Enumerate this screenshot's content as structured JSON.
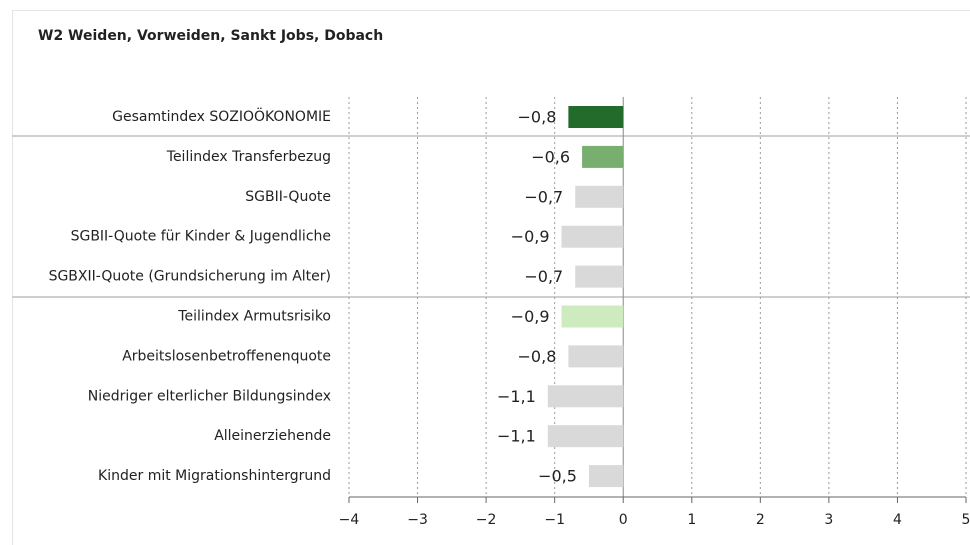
{
  "chart_data": {
    "type": "bar",
    "orientation": "horizontal",
    "title": "W2 Weiden, Vorweiden, Sankt Jobs, Dobach",
    "categories": [
      "Gesamtindex SOZIOÖKONOMIE",
      "Teilindex Transferbezug",
      "SGBII-Quote",
      "SGBII-Quote für Kinder & Jugendliche",
      "SGBXII-Quote (Grundsicherung im Alter)",
      "Teilindex Armutsrisiko",
      "Arbeitslosenbetroffenenquote",
      "Niedriger elterlicher Bildungsindex",
      "Alleinerziehende",
      "Kinder mit Migrationshintergrund"
    ],
    "values": [
      -0.8,
      -0.6,
      -0.7,
      -0.9,
      -0.7,
      -0.9,
      -0.8,
      -1.1,
      -1.1,
      -0.5
    ],
    "value_labels": [
      "−0,8",
      "−0,6",
      "−0,7",
      "−0,9",
      "−0,7",
      "−0,9",
      "−0,8",
      "−1,1",
      "−1,1",
      "−0,5"
    ],
    "colors": [
      "#226b2a",
      "#78ae6e",
      "#d9d9d9",
      "#d9d9d9",
      "#d9d9d9",
      "#cdebbf",
      "#d9d9d9",
      "#d9d9d9",
      "#d9d9d9",
      "#d9d9d9"
    ],
    "xlim": [
      -4,
      5
    ],
    "xticks": [
      {
        "value": -4,
        "label": "−4"
      },
      {
        "value": -3,
        "label": "−3"
      },
      {
        "value": -2,
        "label": "−2"
      },
      {
        "value": -1,
        "label": "−1"
      },
      0,
      1,
      2,
      3,
      4,
      5
    ],
    "grid": true
  }
}
